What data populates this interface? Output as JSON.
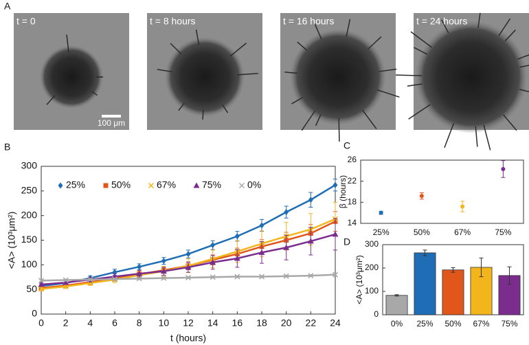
{
  "panel_a": {
    "letter": "A",
    "images": [
      {
        "label": "t = 0"
      },
      {
        "label": "t = 8 hours"
      },
      {
        "label": "t = 16 hours"
      },
      {
        "label": "t = 24 hours"
      }
    ],
    "scale_bar": "100 μm"
  },
  "chart_data": [
    {
      "type": "line",
      "letter": "B",
      "xlabel": "t (hours)",
      "ylabel": "<A> (10³μm²)",
      "x": [
        0,
        2,
        4,
        6,
        8,
        10,
        12,
        14,
        16,
        18,
        20,
        22,
        24
      ],
      "xlim": [
        0,
        24
      ],
      "xticks": [
        0,
        2,
        4,
        6,
        8,
        10,
        12,
        14,
        16,
        18,
        20,
        22,
        24
      ],
      "ylim": [
        0,
        300
      ],
      "yticks": [
        0,
        50,
        100,
        150,
        200,
        250,
        300
      ],
      "legend": "top-left",
      "series": [
        {
          "name": "25%",
          "color": "#1f6db5",
          "marker": "diamond",
          "values": [
            57,
            63,
            73,
            85,
            96,
            108,
            122,
            140,
            158,
            180,
            207,
            232,
            262
          ],
          "errors": [
            5,
            5,
            5,
            6,
            6,
            7,
            8,
            9,
            10,
            12,
            12,
            15,
            12
          ]
        },
        {
          "name": "50%",
          "color": "#e0561b",
          "marker": "square",
          "values": [
            53,
            58,
            65,
            72,
            81,
            89,
            98,
            110,
            122,
            137,
            150,
            164,
            188
          ],
          "errors": [
            4,
            4,
            5,
            5,
            6,
            6,
            8,
            10,
            12,
            14,
            16,
            18,
            20
          ]
        },
        {
          "name": "67%",
          "color": "#f2b51c",
          "marker": "cross",
          "values": [
            51,
            56,
            63,
            70,
            79,
            87,
            98,
            112,
            127,
            143,
            158,
            172,
            193
          ],
          "errors": [
            4,
            4,
            5,
            6,
            8,
            10,
            14,
            18,
            22,
            26,
            28,
            32,
            34
          ]
        },
        {
          "name": "75%",
          "color": "#7b2d8e",
          "marker": "triangle",
          "values": [
            60,
            64,
            70,
            76,
            82,
            87,
            95,
            105,
            113,
            125,
            135,
            148,
            162
          ],
          "errors": [
            4,
            4,
            5,
            6,
            7,
            8,
            10,
            14,
            18,
            22,
            25,
            28,
            32
          ]
        },
        {
          "name": "0%",
          "color": "#a8a8a8",
          "marker": "x",
          "values": [
            68,
            69,
            70,
            71,
            72,
            73,
            74,
            75,
            76,
            76,
            77,
            78,
            80
          ],
          "errors": [
            2,
            2,
            2,
            2,
            2,
            2,
            2,
            2,
            2,
            2,
            2,
            2,
            2
          ]
        }
      ]
    },
    {
      "type": "scatter",
      "letter": "C",
      "ylabel": "β (hours)",
      "categories": [
        "25%",
        "50%",
        "67%",
        "75%"
      ],
      "values": [
        16.0,
        19.2,
        17.2,
        24.3
      ],
      "errors": [
        0.3,
        0.6,
        1.0,
        1.6
      ],
      "colors": [
        "#1f6db5",
        "#e0561b",
        "#f2b51c",
        "#7b2d8e"
      ],
      "ylim": [
        14,
        26
      ],
      "yticks": [
        14,
        18,
        22,
        26
      ]
    },
    {
      "type": "bar",
      "letter": "D",
      "ylabel": "<A> (10³μm²)",
      "categories": [
        "0%",
        "25%",
        "50%",
        "67%",
        "75%"
      ],
      "values": [
        83,
        265,
        192,
        203,
        168
      ],
      "errors": [
        3,
        12,
        10,
        40,
        37
      ],
      "colors": [
        "#a8a8a8",
        "#1f6db5",
        "#e0561b",
        "#f2b51c",
        "#7b2d8e"
      ],
      "ylim": [
        0,
        300
      ],
      "yticks": [
        0,
        100,
        200,
        300
      ]
    }
  ]
}
